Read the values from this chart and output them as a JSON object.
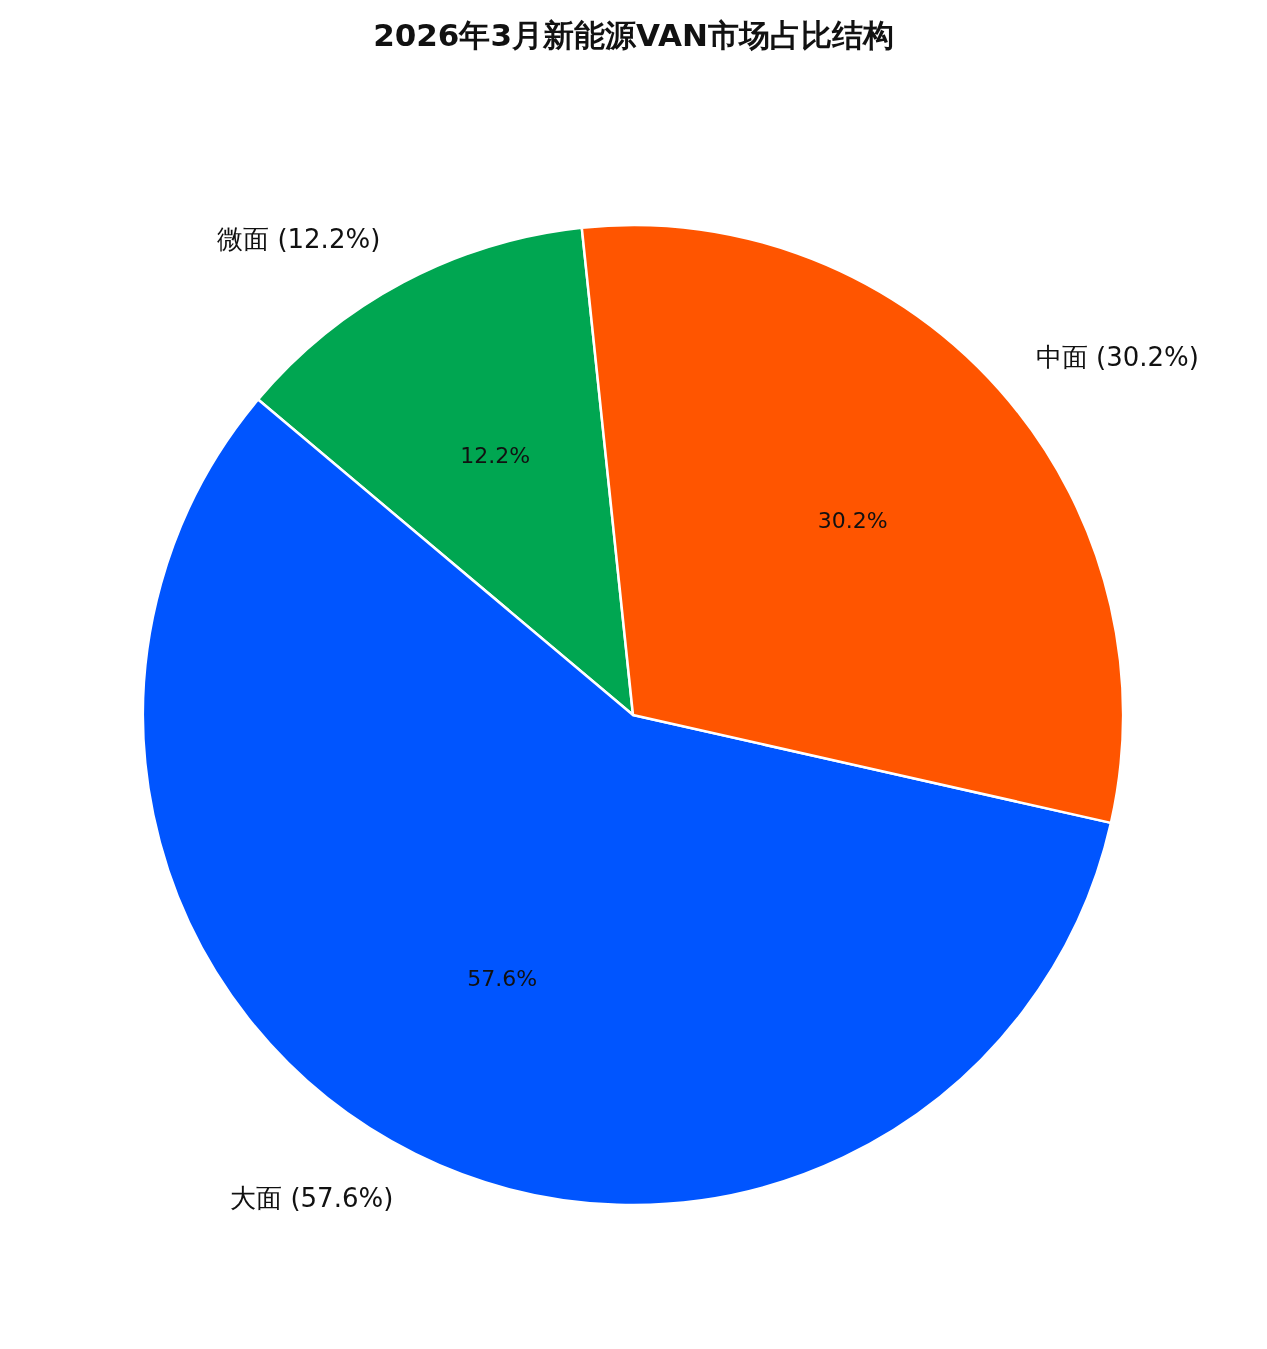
{
  "chart_data": {
    "type": "pie",
    "title": "2026年3月新能源VAN市场占比结构",
    "categories": [
      "微面 (12.2%)",
      "大面 (57.6%)",
      "中面 (30.2%)"
    ],
    "values": [
      12.2,
      57.6,
      30.2
    ],
    "value_labels": [
      "12.2%",
      "57.6%",
      "30.2%"
    ],
    "colors": [
      "#00a651",
      "#0055ff",
      "#ff5500"
    ]
  }
}
